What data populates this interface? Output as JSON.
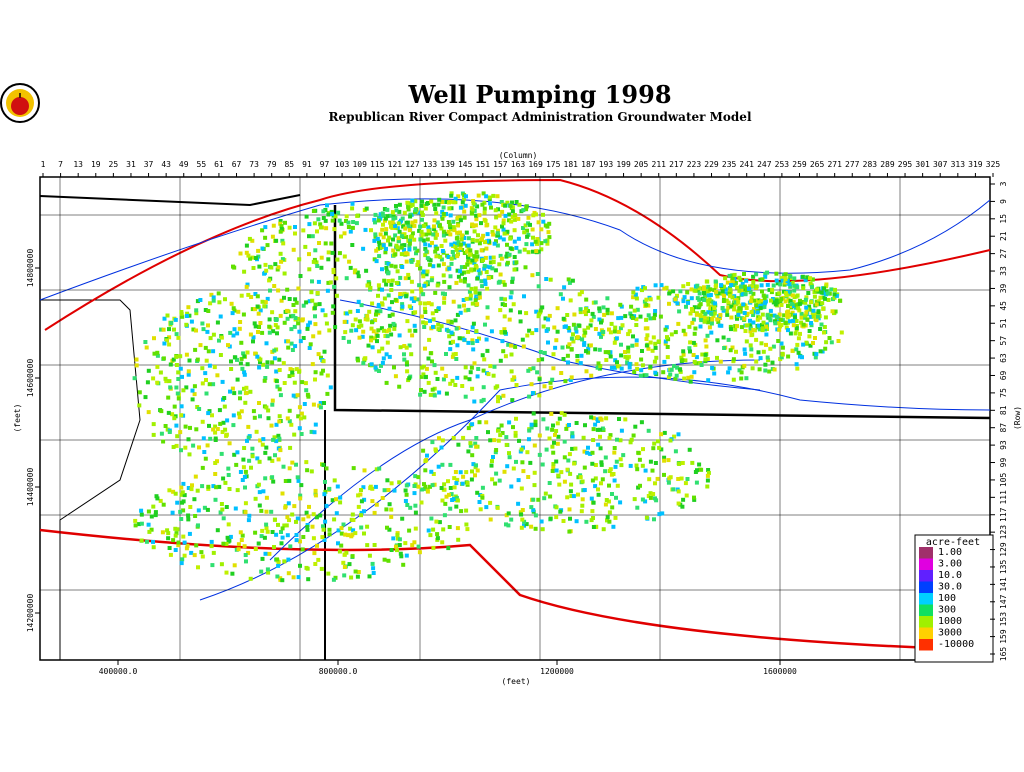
{
  "header": {
    "title": "Well Pumping 1998",
    "subtitle": "Republican River Compact Administration Groundwater Model"
  },
  "map": {
    "column_axis": {
      "label": "(Column)",
      "ticks": [
        1,
        7,
        13,
        19,
        25,
        31,
        37,
        43,
        49,
        55,
        61,
        67,
        73,
        79,
        85,
        91,
        97,
        103,
        109,
        115,
        121,
        127,
        133,
        139,
        145,
        151,
        157,
        163,
        169,
        175,
        181,
        187,
        193,
        199,
        205,
        211,
        217,
        223,
        229,
        235,
        241,
        247,
        253,
        259,
        265,
        271,
        277,
        283,
        289,
        295,
        301,
        307,
        313,
        319,
        325
      ]
    },
    "row_axis": {
      "label": "(Row)",
      "ticks": [
        3,
        9,
        15,
        21,
        27,
        33,
        39,
        45,
        51,
        57,
        63,
        69,
        75,
        81,
        87,
        93,
        99,
        105,
        111,
        117,
        123,
        129,
        135,
        141,
        147,
        153,
        159,
        165
      ]
    },
    "x_axis": {
      "label": "(feet)",
      "ticks": [
        "400000.0",
        "800000.0",
        "1200000",
        "1600000"
      ]
    },
    "y_axis": {
      "label": "(feet)",
      "ticks": [
        "14800000",
        "14600000",
        "14400000",
        "14200000"
      ]
    },
    "legend": {
      "title": "acre-feet",
      "items": [
        {
          "label": "1.00",
          "color": "#a0306a"
        },
        {
          "label": "3.00",
          "color": "#e000e0"
        },
        {
          "label": "10.0",
          "color": "#6020ff"
        },
        {
          "label": "30.0",
          "color": "#0040ff"
        },
        {
          "label": "100",
          "color": "#00d0ff"
        },
        {
          "label": "300",
          "color": "#10e060"
        },
        {
          "label": "1000",
          "color": "#a0f000"
        },
        {
          "label": "3000",
          "color": "#ffd000"
        },
        {
          "label": "-10000",
          "color": "#ff3000"
        }
      ]
    }
  }
}
